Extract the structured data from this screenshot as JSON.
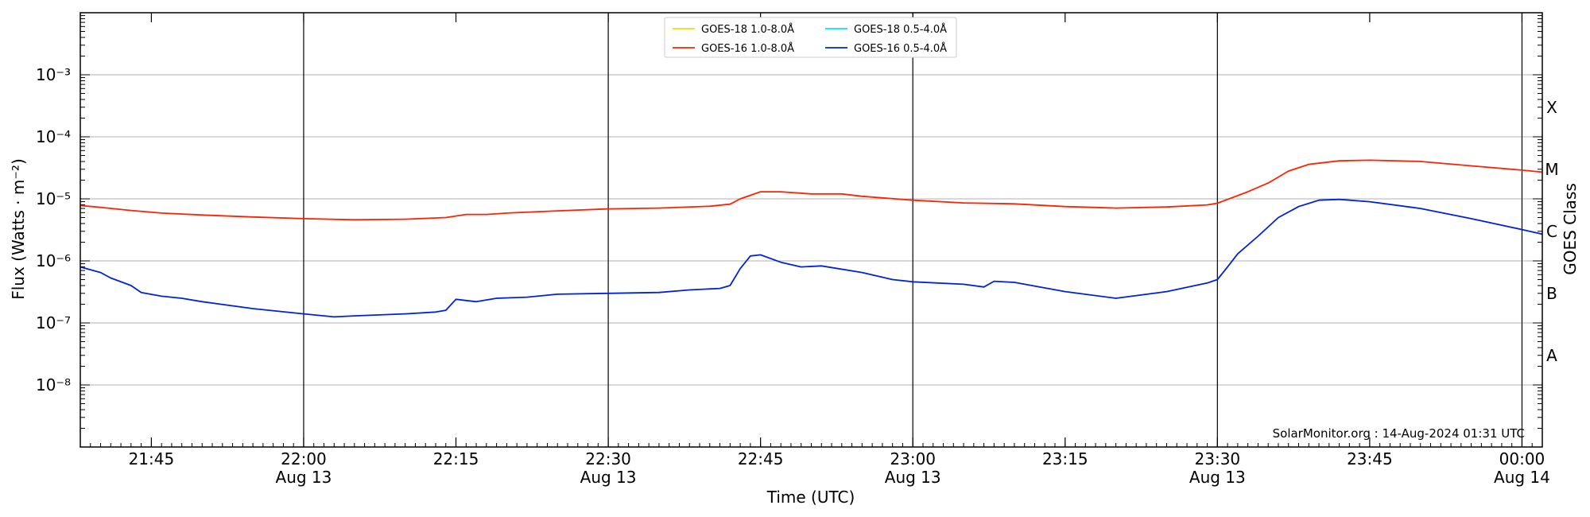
{
  "chart_data": {
    "type": "line",
    "xlabel": "Time (UTC)",
    "ylabel_left": "Flux (Watts · m⁻²)",
    "ylabel_right": "GOES Class",
    "yscale": "log",
    "ylim": [
      1e-09,
      0.01
    ],
    "xlim": [
      "2024-08-13T21:38",
      "2024-08-14T00:02"
    ],
    "y_ticks": [
      {
        "value": 1e-08,
        "label": "10⁻⁸"
      },
      {
        "value": 1e-07,
        "label": "10⁻⁷"
      },
      {
        "value": 1e-06,
        "label": "10⁻⁶"
      },
      {
        "value": 1e-05,
        "label": "10⁻⁵"
      },
      {
        "value": 0.0001,
        "label": "10⁻⁴"
      },
      {
        "value": 0.001,
        "label": "10⁻³"
      }
    ],
    "x_ticks": [
      {
        "time": "2024-08-13T21:45",
        "label": "21:45",
        "sublabel": ""
      },
      {
        "time": "2024-08-13T22:00",
        "label": "22:00",
        "sublabel": "Aug 13"
      },
      {
        "time": "2024-08-13T22:15",
        "label": "22:15",
        "sublabel": ""
      },
      {
        "time": "2024-08-13T22:30",
        "label": "22:30",
        "sublabel": "Aug 13"
      },
      {
        "time": "2024-08-13T22:45",
        "label": "22:45",
        "sublabel": ""
      },
      {
        "time": "2024-08-13T23:00",
        "label": "23:00",
        "sublabel": "Aug 13"
      },
      {
        "time": "2024-08-13T23:15",
        "label": "23:15",
        "sublabel": ""
      },
      {
        "time": "2024-08-13T23:30",
        "label": "23:30",
        "sublabel": "Aug 13"
      },
      {
        "time": "2024-08-13T23:45",
        "label": "23:45",
        "sublabel": ""
      },
      {
        "time": "2024-08-14T00:00",
        "label": "00:00",
        "sublabel": "Aug 14"
      }
    ],
    "vertical_lines": [
      "2024-08-13T22:00",
      "2024-08-13T22:30",
      "2024-08-13T23:00",
      "2024-08-13T23:30",
      "2024-08-14T00:00"
    ],
    "class_labels": [
      {
        "label": "A",
        "value": 3e-08
      },
      {
        "label": "B",
        "value": 3e-07
      },
      {
        "label": "C",
        "value": 3e-06
      },
      {
        "label": "M",
        "value": 3e-05
      },
      {
        "label": "X",
        "value": 0.0003
      }
    ],
    "grid": true,
    "legend": {
      "placement": "top-center",
      "entries": [
        {
          "name": "GOES-18 1.0-8.0Å",
          "color": "#ffd700"
        },
        {
          "name": "GOES-18 0.5-4.0Å",
          "color": "#00e5ff"
        },
        {
          "name": "GOES-16 1.0-8.0Å",
          "color": "#ff2200"
        },
        {
          "name": "GOES-16 0.5-4.0Å",
          "color": "#0022dd"
        }
      ]
    },
    "series": [
      {
        "name": "GOES-16 1.0-8.0Å",
        "color": "#ff2200",
        "points": [
          [
            "2024-08-13T21:38",
            7.8e-06
          ],
          [
            "2024-08-13T21:40",
            7.3e-06
          ],
          [
            "2024-08-13T21:43",
            6.5e-06
          ],
          [
            "2024-08-13T21:46",
            5.9e-06
          ],
          [
            "2024-08-13T21:50",
            5.5e-06
          ],
          [
            "2024-08-13T21:55",
            5.1e-06
          ],
          [
            "2024-08-13T22:00",
            4.8e-06
          ],
          [
            "2024-08-13T22:05",
            4.6e-06
          ],
          [
            "2024-08-13T22:10",
            4.7e-06
          ],
          [
            "2024-08-13T22:14",
            5e-06
          ],
          [
            "2024-08-13T22:16",
            5.6e-06
          ],
          [
            "2024-08-13T22:18",
            5.6e-06
          ],
          [
            "2024-08-13T22:20",
            5.9e-06
          ],
          [
            "2024-08-13T22:25",
            6.4e-06
          ],
          [
            "2024-08-13T22:30",
            6.9e-06
          ],
          [
            "2024-08-13T22:35",
            7.1e-06
          ],
          [
            "2024-08-13T22:40",
            7.6e-06
          ],
          [
            "2024-08-13T22:42",
            8.2e-06
          ],
          [
            "2024-08-13T22:43",
            1e-05
          ],
          [
            "2024-08-13T22:45",
            1.3e-05
          ],
          [
            "2024-08-13T22:47",
            1.3e-05
          ],
          [
            "2024-08-13T22:50",
            1.2e-05
          ],
          [
            "2024-08-13T22:53",
            1.2e-05
          ],
          [
            "2024-08-13T22:55",
            1.1e-05
          ],
          [
            "2024-08-13T23:00",
            9.5e-06
          ],
          [
            "2024-08-13T23:05",
            8.6e-06
          ],
          [
            "2024-08-13T23:10",
            8.3e-06
          ],
          [
            "2024-08-13T23:15",
            7.5e-06
          ],
          [
            "2024-08-13T23:20",
            7.1e-06
          ],
          [
            "2024-08-13T23:25",
            7.4e-06
          ],
          [
            "2024-08-13T23:29",
            8e-06
          ],
          [
            "2024-08-13T23:30",
            8.5e-06
          ],
          [
            "2024-08-13T23:31",
            9.8e-06
          ],
          [
            "2024-08-13T23:33",
            1.3e-05
          ],
          [
            "2024-08-13T23:35",
            1.8e-05
          ],
          [
            "2024-08-13T23:37",
            2.8e-05
          ],
          [
            "2024-08-13T23:39",
            3.6e-05
          ],
          [
            "2024-08-13T23:42",
            4.1e-05
          ],
          [
            "2024-08-13T23:45",
            4.2e-05
          ],
          [
            "2024-08-13T23:50",
            4e-05
          ],
          [
            "2024-08-13T23:55",
            3.4e-05
          ],
          [
            "2024-08-14T00:00",
            2.9e-05
          ],
          [
            "2024-08-14T00:02",
            2.7e-05
          ]
        ]
      },
      {
        "name": "GOES-16 0.5-4.0Å",
        "color": "#0022dd",
        "points": [
          [
            "2024-08-13T21:38",
            8e-07
          ],
          [
            "2024-08-13T21:40",
            6.5e-07
          ],
          [
            "2024-08-13T21:41",
            5.3e-07
          ],
          [
            "2024-08-13T21:43",
            4e-07
          ],
          [
            "2024-08-13T21:44",
            3.1e-07
          ],
          [
            "2024-08-13T21:46",
            2.7e-07
          ],
          [
            "2024-08-13T21:48",
            2.5e-07
          ],
          [
            "2024-08-13T21:50",
            2.2e-07
          ],
          [
            "2024-08-13T21:55",
            1.7e-07
          ],
          [
            "2024-08-13T22:00",
            1.4e-07
          ],
          [
            "2024-08-13T22:03",
            1.25e-07
          ],
          [
            "2024-08-13T22:05",
            1.3e-07
          ],
          [
            "2024-08-13T22:10",
            1.4e-07
          ],
          [
            "2024-08-13T22:13",
            1.5e-07
          ],
          [
            "2024-08-13T22:14",
            1.6e-07
          ],
          [
            "2024-08-13T22:15",
            2.4e-07
          ],
          [
            "2024-08-13T22:17",
            2.2e-07
          ],
          [
            "2024-08-13T22:19",
            2.5e-07
          ],
          [
            "2024-08-13T22:22",
            2.6e-07
          ],
          [
            "2024-08-13T22:25",
            2.9e-07
          ],
          [
            "2024-08-13T22:30",
            3e-07
          ],
          [
            "2024-08-13T22:35",
            3.1e-07
          ],
          [
            "2024-08-13T22:38",
            3.4e-07
          ],
          [
            "2024-08-13T22:41",
            3.6e-07
          ],
          [
            "2024-08-13T22:42",
            4e-07
          ],
          [
            "2024-08-13T22:43",
            7.5e-07
          ],
          [
            "2024-08-13T22:44",
            1.2e-06
          ],
          [
            "2024-08-13T22:45",
            1.25e-06
          ],
          [
            "2024-08-13T22:47",
            9.5e-07
          ],
          [
            "2024-08-13T22:49",
            8e-07
          ],
          [
            "2024-08-13T22:51",
            8.3e-07
          ],
          [
            "2024-08-13T22:55",
            6.5e-07
          ],
          [
            "2024-08-13T22:58",
            5e-07
          ],
          [
            "2024-08-13T23:00",
            4.6e-07
          ],
          [
            "2024-08-13T23:05",
            4.2e-07
          ],
          [
            "2024-08-13T23:07",
            3.8e-07
          ],
          [
            "2024-08-13T23:08",
            4.7e-07
          ],
          [
            "2024-08-13T23:10",
            4.5e-07
          ],
          [
            "2024-08-13T23:15",
            3.2e-07
          ],
          [
            "2024-08-13T23:20",
            2.5e-07
          ],
          [
            "2024-08-13T23:25",
            3.2e-07
          ],
          [
            "2024-08-13T23:29",
            4.4e-07
          ],
          [
            "2024-08-13T23:30",
            5e-07
          ],
          [
            "2024-08-13T23:31",
            8e-07
          ],
          [
            "2024-08-13T23:32",
            1.3e-06
          ],
          [
            "2024-08-13T23:34",
            2.5e-06
          ],
          [
            "2024-08-13T23:36",
            5e-06
          ],
          [
            "2024-08-13T23:38",
            7.5e-06
          ],
          [
            "2024-08-13T23:40",
            9.5e-06
          ],
          [
            "2024-08-13T23:42",
            9.8e-06
          ],
          [
            "2024-08-13T23:45",
            9e-06
          ],
          [
            "2024-08-13T23:50",
            7e-06
          ],
          [
            "2024-08-13T23:55",
            4.8e-06
          ],
          [
            "2024-08-14T00:00",
            3.2e-06
          ],
          [
            "2024-08-14T00:02",
            2.7e-06
          ]
        ]
      }
    ],
    "credit": "SolarMonitor.org : 14-Aug-2024 01:31 UTC"
  }
}
